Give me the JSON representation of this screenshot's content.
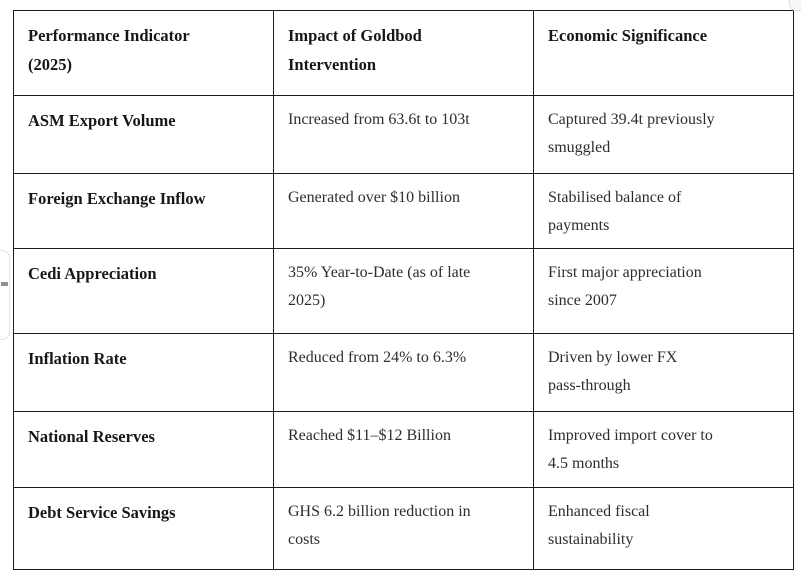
{
  "colors": {
    "border": "#1b1b1b",
    "body_text": "#2d2d2d",
    "bold_text": "#171717",
    "background": "#ffffff",
    "fragment_border": "#dddddd",
    "handle_dash": "#8f8f8f"
  },
  "table": {
    "headers": [
      {
        "label": "Performance Indicator\n(2025)"
      },
      {
        "label": "Impact of Goldbod\nIntervention"
      },
      {
        "label": "Economic Significance"
      }
    ],
    "rows": [
      {
        "indicator": "ASM Export Volume",
        "impact": "Increased from 63.6t to 103t",
        "significance": "Captured 39.4t previously\nsmuggled"
      },
      {
        "indicator": "Foreign Exchange Inflow",
        "impact": "Generated over $10 billion",
        "significance": "Stabilised balance of\npayments"
      },
      {
        "indicator": "Cedi Appreciation",
        "impact": "35% Year-to-Date (as of late\n2025)",
        "significance": "First major appreciation\nsince 2007"
      },
      {
        "indicator": "Inflation Rate",
        "impact": "Reduced from 24% to 6.3%",
        "significance": "Driven by lower FX\npass-through"
      },
      {
        "indicator": "National Reserves",
        "impact": "Reached $11–$12 Billion",
        "significance": "Improved import cover to\n4.5 months"
      },
      {
        "indicator": "Debt Service Savings",
        "impact": "GHS 6.2 billion reduction in\ncosts",
        "significance": "Enhanced fiscal\nsustainability"
      }
    ]
  }
}
